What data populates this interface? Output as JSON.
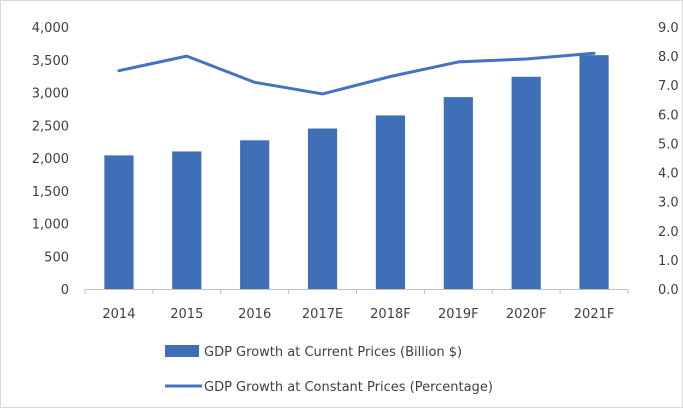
{
  "chart_data": {
    "type": "bar",
    "categories": [
      "2014",
      "2015",
      "2016",
      "2017E",
      "2018F",
      "2019F",
      "2020F",
      "2021F"
    ],
    "series": [
      {
        "name": "GDP Growth at Current Prices (Billion $)",
        "type": "bar",
        "axis": "left",
        "values": [
          2040,
          2100,
          2270,
          2450,
          2650,
          2930,
          3240,
          3570
        ]
      },
      {
        "name": "GDP Growth at Constant Prices (Percentage)",
        "type": "line",
        "axis": "right",
        "values": [
          7.5,
          8.0,
          7.1,
          6.7,
          7.3,
          7.8,
          7.9,
          8.1
        ]
      }
    ],
    "left_axis": {
      "ylim": [
        0,
        4000
      ],
      "ticks": [
        "0",
        "500",
        "1,000",
        "1,500",
        "2,000",
        "2,500",
        "3,000",
        "3,500",
        "4,000"
      ]
    },
    "right_axis": {
      "ylim": [
        0,
        9
      ],
      "ticks": [
        "0.0",
        "1.0",
        "2.0",
        "3.0",
        "4.0",
        "5.0",
        "6.0",
        "7.0",
        "8.0",
        "9.0"
      ]
    },
    "grid": false,
    "legend": "bottom",
    "colors": {
      "bar": "#3f6fb6",
      "line": "#4472c4",
      "axis": "#a6a6a6",
      "text": "#404040"
    }
  }
}
